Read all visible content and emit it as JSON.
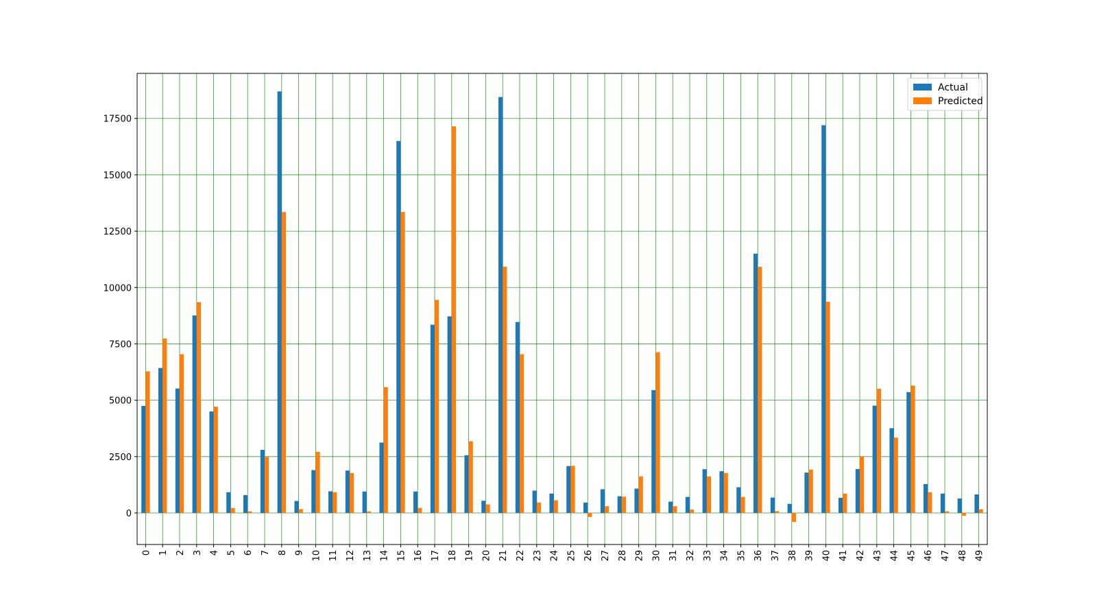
{
  "chart_data": {
    "type": "bar",
    "categories": [
      "0",
      "1",
      "2",
      "3",
      "4",
      "5",
      "6",
      "7",
      "8",
      "9",
      "10",
      "11",
      "12",
      "13",
      "14",
      "15",
      "16",
      "17",
      "18",
      "19",
      "20",
      "21",
      "22",
      "23",
      "24",
      "25",
      "26",
      "27",
      "28",
      "29",
      "30",
      "31",
      "32",
      "33",
      "34",
      "35",
      "36",
      "37",
      "38",
      "39",
      "40",
      "41",
      "42",
      "43",
      "44",
      "45",
      "46",
      "47",
      "48",
      "49"
    ],
    "series": [
      {
        "name": "Actual",
        "color": "#1f77b4",
        "values": [
          4750,
          6430,
          5520,
          8760,
          4500,
          920,
          790,
          2800,
          18700,
          530,
          1900,
          960,
          1880,
          950,
          3120,
          16500,
          950,
          8350,
          8720,
          2560,
          540,
          18450,
          8470,
          990,
          860,
          2080,
          460,
          1050,
          740,
          1080,
          5450,
          500,
          710,
          1940,
          1850,
          1140,
          11500,
          680,
          400,
          1790,
          17200,
          670,
          1950,
          4760,
          3760,
          5360,
          1280,
          860,
          640,
          820
        ]
      },
      {
        "name": "Predicted",
        "color": "#ff7f0e",
        "values": [
          6280,
          7740,
          7040,
          9350,
          4710,
          220,
          70,
          2480,
          13350,
          170,
          2710,
          920,
          1770,
          70,
          5580,
          13350,
          220,
          9450,
          17150,
          3180,
          380,
          10920,
          7040,
          460,
          560,
          2090,
          -180,
          300,
          720,
          1620,
          7130,
          300,
          150,
          1620,
          1770,
          710,
          10920,
          80,
          -400,
          1920,
          9370,
          860,
          2500,
          5510,
          3340,
          5650,
          920,
          70,
          -130,
          160
        ]
      }
    ],
    "ylim": [
      -1400,
      19500
    ],
    "yticks": [
      0,
      2500,
      5000,
      7500,
      10000,
      12500,
      15000,
      17500
    ],
    "grid": true,
    "grid_color": "#008000",
    "legend_position": "top-right",
    "title": "",
    "xlabel": "",
    "ylabel": ""
  }
}
